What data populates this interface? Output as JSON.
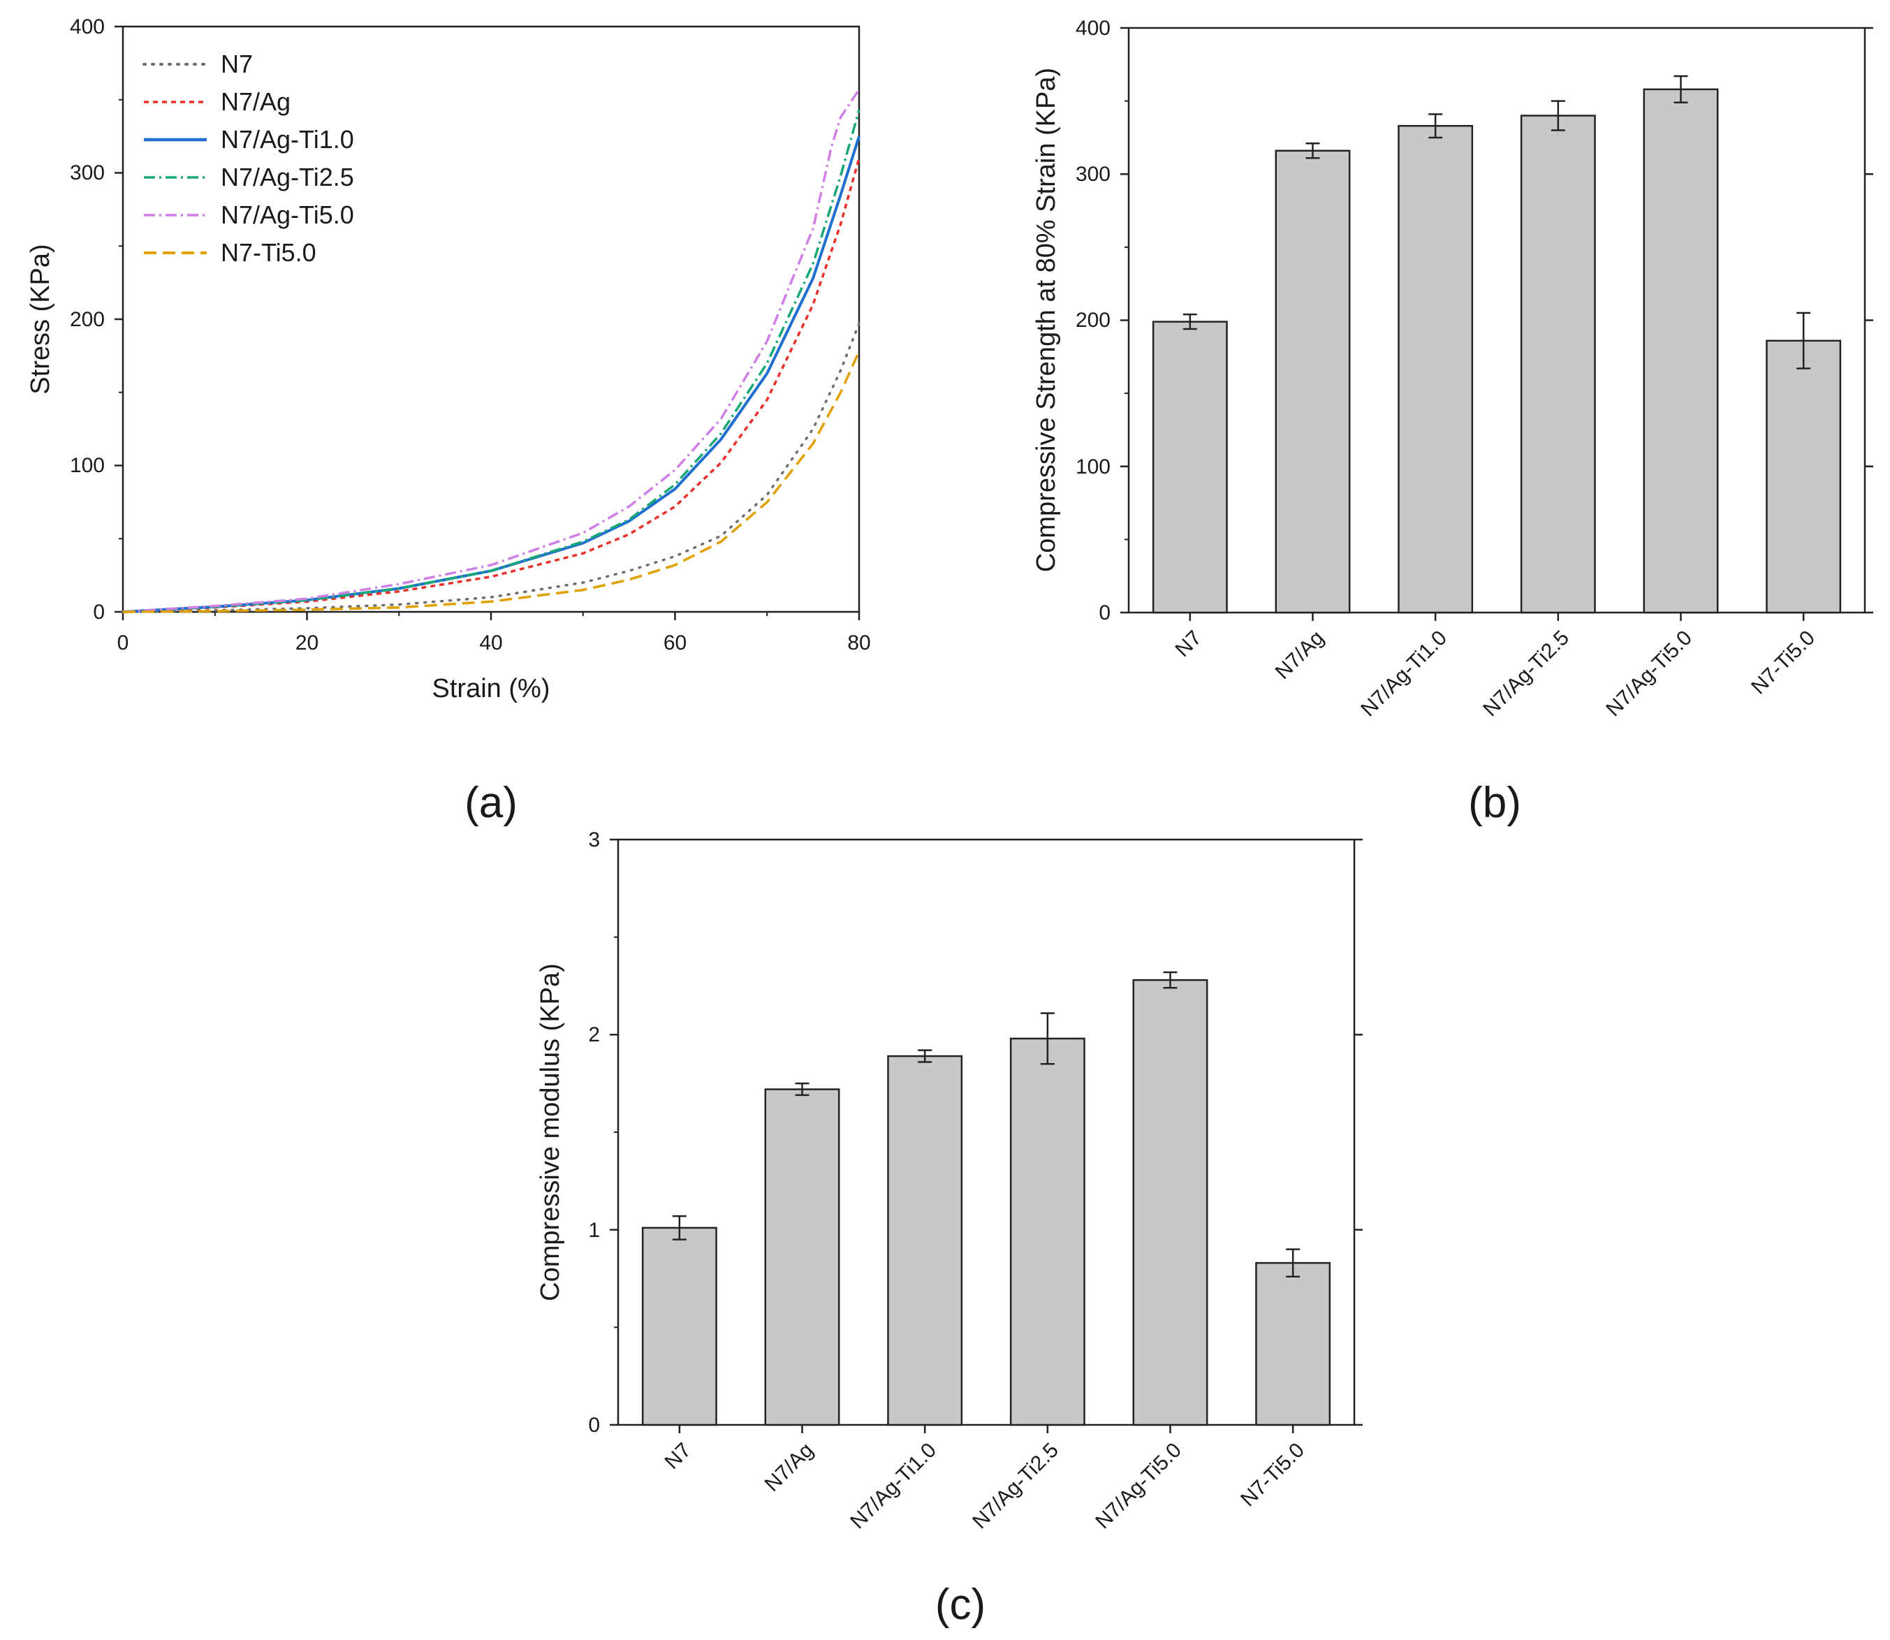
{
  "chart_data": [
    {
      "id": "a",
      "type": "line",
      "panel_label": "(a)",
      "xlabel": "Strain (%)",
      "ylabel": "Stress (KPa)",
      "xlim": [
        0,
        80
      ],
      "ylim": [
        0,
        400
      ],
      "xticks": [
        "0",
        "20",
        "40",
        "60",
        "80"
      ],
      "yticks": [
        "0",
        "100",
        "200",
        "300",
        "400"
      ],
      "legend_position": "top-left",
      "series": [
        {
          "name": "N7",
          "color": "#6e6e6e",
          "dash": "dotted",
          "x": [
            0,
            10,
            20,
            30,
            40,
            50,
            55,
            60,
            65,
            70,
            75,
            78,
            80
          ],
          "y": [
            0,
            1,
            2.5,
            5,
            10,
            20,
            28,
            38,
            52,
            80,
            125,
            165,
            197
          ]
        },
        {
          "name": "N7/Ag",
          "color": "#e8312a",
          "dash": "short-dash",
          "x": [
            0,
            10,
            20,
            30,
            40,
            50,
            55,
            60,
            65,
            70,
            75,
            78,
            80
          ],
          "y": [
            0,
            3,
            7,
            14,
            24,
            40,
            53,
            72,
            102,
            145,
            210,
            265,
            310
          ]
        },
        {
          "name": "N7/Ag-Ti1.0",
          "color": "#1f6fd1",
          "dash": "solid",
          "x": [
            0,
            10,
            20,
            30,
            40,
            50,
            55,
            60,
            65,
            70,
            75,
            78,
            80
          ],
          "y": [
            0,
            3.5,
            8,
            16,
            28,
            47,
            62,
            84,
            118,
            163,
            228,
            285,
            325
          ]
        },
        {
          "name": "N7/Ag-Ti2.5",
          "color": "#18a878",
          "dash": "dash-dot",
          "x": [
            0,
            10,
            20,
            30,
            40,
            50,
            55,
            60,
            65,
            70,
            75,
            78,
            80
          ],
          "y": [
            0,
            3.5,
            8,
            16,
            28,
            48,
            63,
            87,
            122,
            170,
            238,
            298,
            343
          ]
        },
        {
          "name": "N7/Ag-Ti5.0",
          "color": "#cf7fe6",
          "dash": "dash-dot",
          "x": [
            0,
            10,
            20,
            30,
            40,
            50,
            55,
            60,
            65,
            70,
            75,
            77,
            78,
            80
          ],
          "y": [
            0,
            4,
            9,
            19,
            32,
            54,
            72,
            97,
            132,
            185,
            262,
            318,
            338,
            357
          ]
        },
        {
          "name": "N7-Ti5.0",
          "color": "#e0a000",
          "dash": "long-dash",
          "x": [
            0,
            10,
            20,
            30,
            40,
            50,
            55,
            60,
            65,
            70,
            75,
            78,
            80
          ],
          "y": [
            0,
            0.5,
            1.5,
            3,
            7,
            15,
            22,
            32,
            48,
            75,
            115,
            150,
            178
          ]
        }
      ]
    },
    {
      "id": "b",
      "type": "bar",
      "panel_label": "(b)",
      "xlabel": "",
      "ylabel": "Compressive Strength at 80% Strain (KPa)",
      "ylim": [
        0,
        400
      ],
      "yticks": [
        "0",
        "100",
        "200",
        "300",
        "400"
      ],
      "categories": [
        "N7",
        "N7/Ag",
        "N7/Ag-Ti1.0",
        "N7/Ag-Ti2.5",
        "N7/Ag-Ti5.0",
        "N7-Ti5.0"
      ],
      "values": [
        199,
        316,
        333,
        340,
        358,
        186
      ],
      "errors": [
        5,
        5,
        8,
        10,
        9,
        19
      ],
      "bar_color": "#c8c8c8"
    },
    {
      "id": "c",
      "type": "bar",
      "panel_label": "(c)",
      "xlabel": "",
      "ylabel": "Compressive modulus (KPa)",
      "ylim": [
        0,
        3
      ],
      "yticks": [
        "0",
        "1",
        "2",
        "3"
      ],
      "categories": [
        "N7",
        "N7/Ag",
        "N7/Ag-Ti1.0",
        "N7/Ag-Ti2.5",
        "N7/Ag-Ti5.0",
        "N7-Ti5.0"
      ],
      "values": [
        1.01,
        1.72,
        1.89,
        1.98,
        2.28,
        0.83
      ],
      "errors": [
        0.06,
        0.03,
        0.03,
        0.13,
        0.04,
        0.07
      ],
      "bar_color": "#c8c8c8"
    }
  ]
}
